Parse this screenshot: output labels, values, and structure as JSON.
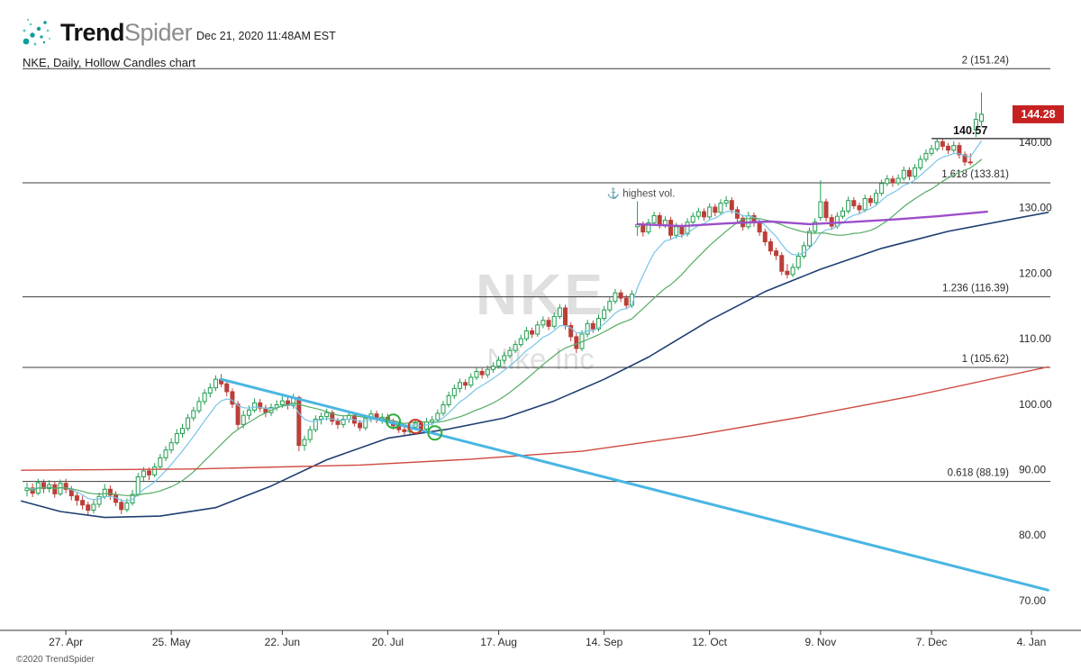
{
  "header": {
    "brand_bold": "Trend",
    "brand_light": "Spider",
    "timestamp": "Dec 21, 2020 11:48AM EST"
  },
  "watermark": {
    "symbol": "NKE",
    "company": "Nike Inc"
  },
  "footer": {
    "copyright": "©2020 TrendSpider"
  },
  "chart_data": {
    "type": "candlestick",
    "title": "NKE, Daily, Hollow Candles chart",
    "symbol": "NKE",
    "timeframe": "Daily",
    "style": "Hollow Candles",
    "grid": false,
    "ylim": [
      68.5,
      152.5
    ],
    "y_axis": [
      [
        140,
        "140.00"
      ],
      [
        130,
        "130.00"
      ],
      [
        120,
        "120.00"
      ],
      [
        110,
        "110.00"
      ],
      [
        100,
        "100.00"
      ],
      [
        90,
        "90.00"
      ],
      [
        80,
        "80.00"
      ],
      [
        70,
        "70.00"
      ]
    ],
    "x_axis": [
      [
        7,
        "27. Apr"
      ],
      [
        26,
        "25. May"
      ],
      [
        46,
        "22. Jun"
      ],
      [
        65,
        "20. Jul"
      ],
      [
        85,
        "17. Aug"
      ],
      [
        104,
        "14. Sep"
      ],
      [
        123,
        "12. Oct"
      ],
      [
        143,
        "9. Nov"
      ],
      [
        163,
        "7. Dec"
      ],
      [
        181,
        "4. Jan"
      ]
    ],
    "fib_levels": [
      [
        151.24,
        "2 (151.24)"
      ],
      [
        133.81,
        "1.618 (133.81)"
      ],
      [
        116.39,
        "1.236 (116.39)"
      ],
      [
        105.62,
        "1 (105.62)"
      ],
      [
        88.19,
        "0.618 (88.19)"
      ]
    ],
    "price_line": {
      "label": "140.57",
      "price": 140.57,
      "start_t": 163
    },
    "last_price": {
      "label": "144.28",
      "price": 144.28
    },
    "annotation": {
      "icon": "anchor-icon",
      "text": "highest vol.",
      "t": 104.5,
      "price": 131.7
    },
    "markers": [
      [
        66,
        97.4,
        "green"
      ],
      [
        70,
        96.6,
        "red"
      ],
      [
        73.5,
        95.6,
        "green"
      ]
    ],
    "colors": {
      "up": "#1f9d4f",
      "down": "#bb3f38",
      "badge": "#c62121",
      "fib_line": "#3c3c3c",
      "axis_text": "#2b2b2b",
      "ema_fast": "#78c4e8",
      "sma_mid": "#55ab63",
      "sma_slow": "#1e3f72",
      "sma_200": "#cf4a3f",
      "vwap": "#9b4fc9",
      "trendline": "#49b6e3",
      "marker_green": "#2fae3e",
      "marker_red": "#d2382c",
      "annotation": "#4a4a4a"
    },
    "overlays": {
      "ema_fast": {
        "kind": "ema",
        "period": 8
      },
      "sma_mid": {
        "kind": "sma",
        "period": 20
      },
      "sma_slow": {
        "kind": "points",
        "points": [
          [
            -1,
            85.2
          ],
          [
            6,
            83.6
          ],
          [
            14,
            82.7
          ],
          [
            24,
            82.9
          ],
          [
            34,
            84.2
          ],
          [
            44,
            87.5
          ],
          [
            54,
            91.5
          ],
          [
            65,
            94.8
          ],
          [
            76,
            96.2
          ],
          [
            86,
            97.9
          ],
          [
            95,
            100.5
          ],
          [
            104,
            103.8
          ],
          [
            112,
            107.2
          ],
          [
            123,
            112.8
          ],
          [
            133,
            117.2
          ],
          [
            143,
            120.6
          ],
          [
            154,
            123.8
          ],
          [
            166,
            126.4
          ],
          [
            184,
            129.3
          ]
        ]
      },
      "sma_200": {
        "kind": "points",
        "points": [
          [
            -1,
            89.9
          ],
          [
            30,
            90.1
          ],
          [
            60,
            90.7
          ],
          [
            80,
            91.6
          ],
          [
            100,
            92.8
          ],
          [
            120,
            95.2
          ],
          [
            140,
            98.1
          ],
          [
            160,
            101.3
          ],
          [
            184,
            105.7
          ]
        ]
      },
      "anchored_vwap": {
        "kind": "points",
        "points": [
          [
            110,
            127.5
          ],
          [
            118,
            127.2
          ],
          [
            126,
            127.6
          ],
          [
            134,
            127.9
          ],
          [
            141,
            127.5
          ],
          [
            148,
            127.8
          ],
          [
            156,
            128.2
          ],
          [
            164,
            128.7
          ],
          [
            173,
            129.4
          ]
        ]
      },
      "trendline": {
        "kind": "points",
        "points": [
          [
            35,
            103.8
          ],
          [
            184,
            71.6
          ]
        ]
      }
    },
    "candles": [
      [
        86.8,
        88.0,
        85.9,
        87.2
      ],
      [
        87.2,
        87.9,
        85.8,
        86.4
      ],
      [
        86.4,
        88.6,
        86.1,
        88.0
      ],
      [
        88.0,
        88.5,
        86.4,
        87.1
      ],
      [
        87.1,
        88.4,
        86.5,
        87.7
      ],
      [
        87.7,
        88.2,
        85.7,
        86.3
      ],
      [
        86.3,
        88.5,
        86.0,
        87.9
      ],
      [
        87.9,
        88.6,
        86.4,
        87.0
      ],
      [
        87.0,
        87.5,
        85.3,
        86.0
      ],
      [
        86.0,
        86.6,
        84.5,
        85.3
      ],
      [
        85.3,
        86.0,
        83.9,
        84.6
      ],
      [
        84.6,
        85.1,
        83.0,
        83.8
      ],
      [
        83.8,
        85.4,
        83.3,
        84.7
      ],
      [
        84.7,
        86.5,
        84.2,
        85.9
      ],
      [
        85.9,
        87.8,
        85.5,
        87.0
      ],
      [
        87.0,
        87.6,
        85.4,
        86.1
      ],
      [
        86.1,
        86.7,
        84.4,
        85.0
      ],
      [
        85.0,
        85.5,
        83.2,
        83.9
      ],
      [
        83.9,
        85.6,
        83.5,
        84.9
      ],
      [
        84.9,
        86.9,
        84.5,
        86.2
      ],
      [
        86.2,
        89.5,
        85.9,
        88.9
      ],
      [
        88.9,
        90.4,
        88.2,
        89.8
      ],
      [
        89.8,
        90.3,
        88.4,
        89.2
      ],
      [
        89.2,
        91.0,
        88.8,
        90.4
      ],
      [
        90.4,
        92.4,
        90.0,
        91.8
      ],
      [
        91.8,
        93.6,
        91.3,
        93.0
      ],
      [
        93.0,
        94.8,
        92.5,
        94.1
      ],
      [
        94.1,
        96.2,
        93.8,
        95.5
      ],
      [
        95.5,
        97.0,
        94.9,
        96.3
      ],
      [
        96.3,
        98.5,
        95.9,
        97.9
      ],
      [
        97.9,
        99.6,
        97.4,
        99.0
      ],
      [
        99.0,
        101.1,
        98.6,
        100.4
      ],
      [
        100.4,
        102.3,
        99.9,
        101.7
      ],
      [
        101.7,
        103.2,
        101.0,
        102.5
      ],
      [
        102.5,
        104.4,
        102.0,
        103.8
      ],
      [
        103.8,
        104.6,
        102.6,
        103.1
      ],
      [
        103.1,
        103.7,
        101.2,
        101.9
      ],
      [
        101.9,
        102.4,
        99.4,
        100.0
      ],
      [
        100.0,
        100.5,
        96.2,
        96.9
      ],
      [
        96.9,
        99.0,
        96.3,
        98.3
      ],
      [
        98.3,
        99.8,
        97.6,
        99.1
      ],
      [
        99.1,
        100.9,
        98.7,
        100.2
      ],
      [
        100.2,
        100.8,
        98.8,
        99.4
      ],
      [
        99.4,
        99.9,
        98.0,
        98.7
      ],
      [
        98.7,
        100.1,
        98.2,
        99.5
      ],
      [
        99.5,
        100.6,
        99.0,
        99.9
      ],
      [
        99.9,
        101.2,
        99.4,
        100.5
      ],
      [
        100.5,
        101.0,
        99.2,
        99.8
      ],
      [
        99.8,
        101.6,
        99.3,
        101.0
      ],
      [
        101.0,
        101.3,
        92.8,
        93.7
      ],
      [
        93.7,
        95.2,
        92.9,
        94.6
      ],
      [
        94.6,
        96.7,
        94.1,
        96.1
      ],
      [
        96.1,
        98.3,
        95.7,
        97.7
      ],
      [
        97.7,
        98.7,
        96.9,
        98.1
      ],
      [
        98.1,
        99.3,
        97.5,
        98.7
      ],
      [
        98.7,
        99.1,
        96.8,
        97.4
      ],
      [
        97.4,
        97.9,
        96.2,
        96.9
      ],
      [
        96.9,
        98.3,
        96.4,
        97.7
      ],
      [
        97.7,
        98.9,
        97.1,
        98.3
      ],
      [
        98.3,
        98.8,
        96.6,
        97.1
      ],
      [
        97.1,
        97.6,
        95.9,
        96.4
      ],
      [
        96.4,
        98.4,
        96.0,
        97.8
      ],
      [
        97.8,
        99.1,
        97.2,
        98.5
      ],
      [
        98.5,
        99.0,
        97.1,
        97.7
      ],
      [
        97.7,
        98.6,
        97.0,
        98.0
      ],
      [
        98.0,
        98.5,
        96.8,
        97.3
      ],
      [
        97.3,
        97.8,
        96.1,
        96.7
      ],
      [
        96.7,
        97.2,
        95.6,
        96.1
      ],
      [
        96.1,
        96.6,
        95.1,
        95.8
      ],
      [
        95.8,
        97.1,
        95.3,
        96.5
      ],
      [
        96.5,
        97.7,
        96.0,
        97.1
      ],
      [
        97.1,
        97.5,
        95.7,
        96.2
      ],
      [
        96.2,
        97.9,
        95.8,
        97.3
      ],
      [
        97.3,
        98.2,
        96.7,
        97.6
      ],
      [
        97.6,
        99.2,
        97.2,
        98.6
      ],
      [
        98.6,
        100.5,
        98.2,
        99.9
      ],
      [
        99.9,
        101.9,
        99.5,
        101.3
      ],
      [
        101.3,
        103.0,
        100.8,
        102.4
      ],
      [
        102.4,
        103.9,
        101.8,
        103.3
      ],
      [
        103.3,
        103.8,
        102.2,
        102.9
      ],
      [
        102.9,
        104.7,
        102.5,
        104.1
      ],
      [
        104.1,
        105.6,
        103.7,
        105.0
      ],
      [
        105.0,
        105.5,
        103.9,
        104.5
      ],
      [
        104.5,
        105.9,
        104.0,
        105.3
      ],
      [
        105.3,
        106.4,
        104.8,
        105.8
      ],
      [
        105.8,
        107.3,
        105.4,
        106.7
      ],
      [
        106.7,
        108.0,
        106.2,
        107.4
      ],
      [
        107.4,
        108.8,
        107.0,
        108.2
      ],
      [
        108.2,
        109.7,
        107.8,
        109.1
      ],
      [
        109.1,
        110.6,
        108.7,
        110.0
      ],
      [
        110.0,
        111.8,
        109.6,
        111.2
      ],
      [
        111.2,
        111.7,
        110.1,
        110.7
      ],
      [
        110.7,
        112.7,
        110.3,
        112.1
      ],
      [
        112.1,
        113.4,
        111.6,
        112.8
      ],
      [
        112.8,
        113.3,
        111.3,
        111.9
      ],
      [
        111.9,
        114.0,
        111.5,
        113.4
      ],
      [
        113.4,
        115.3,
        113.0,
        114.7
      ],
      [
        114.7,
        115.2,
        111.4,
        112.0
      ],
      [
        112.0,
        112.5,
        109.6,
        110.3
      ],
      [
        110.3,
        110.8,
        107.8,
        108.5
      ],
      [
        108.5,
        111.3,
        108.1,
        110.7
      ],
      [
        110.7,
        112.9,
        110.2,
        112.3
      ],
      [
        112.3,
        112.8,
        110.9,
        111.5
      ],
      [
        111.5,
        113.7,
        111.1,
        113.1
      ],
      [
        113.1,
        115.0,
        112.7,
        114.4
      ],
      [
        114.4,
        116.3,
        114.0,
        115.7
      ],
      [
        115.7,
        117.6,
        115.3,
        117.0
      ],
      [
        117.0,
        117.5,
        115.6,
        116.2
      ],
      [
        116.2,
        116.7,
        114.5,
        115.1
      ],
      [
        115.1,
        117.4,
        114.7,
        116.8
      ],
      [
        127.1,
        131.0,
        125.7,
        127.4
      ],
      [
        127.4,
        127.9,
        125.6,
        126.3
      ],
      [
        126.3,
        128.3,
        125.9,
        127.7
      ],
      [
        127.7,
        129.4,
        127.2,
        128.8
      ],
      [
        128.8,
        129.3,
        126.8,
        127.4
      ],
      [
        127.4,
        128.7,
        126.9,
        128.1
      ],
      [
        128.1,
        128.6,
        125.2,
        125.8
      ],
      [
        125.8,
        127.7,
        125.3,
        127.1
      ],
      [
        127.1,
        127.6,
        125.4,
        126.0
      ],
      [
        126.0,
        128.4,
        125.6,
        127.8
      ],
      [
        127.8,
        129.3,
        127.3,
        128.7
      ],
      [
        128.7,
        130.0,
        128.2,
        129.4
      ],
      [
        129.4,
        129.9,
        128.0,
        128.6
      ],
      [
        128.6,
        130.7,
        128.2,
        130.1
      ],
      [
        130.1,
        130.6,
        128.7,
        129.3
      ],
      [
        129.3,
        131.3,
        128.9,
        130.7
      ],
      [
        130.7,
        131.8,
        130.1,
        131.1
      ],
      [
        131.1,
        131.6,
        129.1,
        129.7
      ],
      [
        129.7,
        130.2,
        127.8,
        128.4
      ],
      [
        128.4,
        128.9,
        126.5,
        127.1
      ],
      [
        127.1,
        129.4,
        126.7,
        128.8
      ],
      [
        128.8,
        129.3,
        127.1,
        127.7
      ],
      [
        127.7,
        128.2,
        125.7,
        126.3
      ],
      [
        126.3,
        126.8,
        124.2,
        124.8
      ],
      [
        124.8,
        125.3,
        122.8,
        123.4
      ],
      [
        123.4,
        123.9,
        122.0,
        122.7
      ],
      [
        122.7,
        123.2,
        119.7,
        120.3
      ],
      [
        120.3,
        121.4,
        119.2,
        119.8
      ],
      [
        119.8,
        121.5,
        119.4,
        120.9
      ],
      [
        120.9,
        123.2,
        120.5,
        122.6
      ],
      [
        122.6,
        124.8,
        122.2,
        124.2
      ],
      [
        124.2,
        127.0,
        123.8,
        126.4
      ],
      [
        126.4,
        128.4,
        126.0,
        127.8
      ],
      [
        128.5,
        134.2,
        128.0,
        130.9
      ],
      [
        130.9,
        131.4,
        127.9,
        128.5
      ],
      [
        128.5,
        129.0,
        126.6,
        127.2
      ],
      [
        127.2,
        129.3,
        126.8,
        128.7
      ],
      [
        128.7,
        130.1,
        128.3,
        129.5
      ],
      [
        129.5,
        131.7,
        129.1,
        131.1
      ],
      [
        131.1,
        131.6,
        129.8,
        130.3
      ],
      [
        130.3,
        130.8,
        129.1,
        129.7
      ],
      [
        129.7,
        132.0,
        129.3,
        131.4
      ],
      [
        131.4,
        131.9,
        130.2,
        130.8
      ],
      [
        130.8,
        132.8,
        130.4,
        132.2
      ],
      [
        132.2,
        134.3,
        131.8,
        133.7
      ],
      [
        133.7,
        135.0,
        133.3,
        134.4
      ],
      [
        134.4,
        134.9,
        133.2,
        133.8
      ],
      [
        133.8,
        135.1,
        133.4,
        134.5
      ],
      [
        134.5,
        136.3,
        134.1,
        135.7
      ],
      [
        135.7,
        136.2,
        134.2,
        134.8
      ],
      [
        134.8,
        136.7,
        134.4,
        136.1
      ],
      [
        136.1,
        138.0,
        135.7,
        137.4
      ],
      [
        137.4,
        138.9,
        137.0,
        138.3
      ],
      [
        138.3,
        139.6,
        137.9,
        139.0
      ],
      [
        139.0,
        140.57,
        138.6,
        140.1
      ],
      [
        140.1,
        140.5,
        138.8,
        139.4
      ],
      [
        139.4,
        139.9,
        138.2,
        138.8
      ],
      [
        138.8,
        140.2,
        138.4,
        139.5
      ],
      [
        139.5,
        140.0,
        137.5,
        138.1
      ],
      [
        138.1,
        138.6,
        136.4,
        137.0
      ],
      [
        137.0,
        138.3,
        136.5,
        136.9
      ],
      [
        141.9,
        144.6,
        140.8,
        143.5
      ],
      [
        143.2,
        147.6,
        142.5,
        144.28
      ]
    ]
  }
}
